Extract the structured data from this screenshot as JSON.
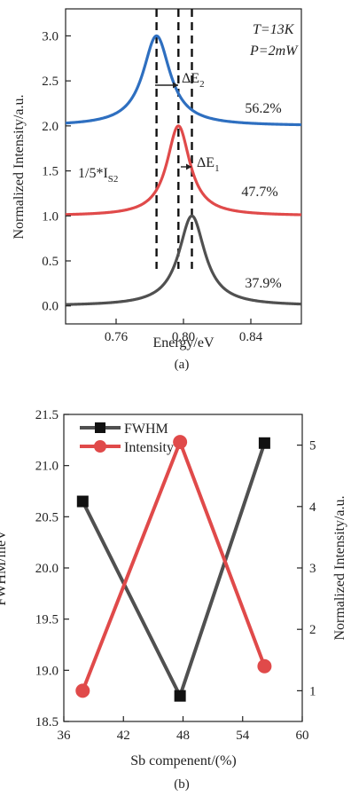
{
  "figure_a": {
    "caption": "(a)",
    "conditions": {
      "temperature": "T=13K",
      "power": "P=2mW"
    },
    "annotations": {
      "scale_note": "1/5*I",
      "scale_note_sub": "S2",
      "delta2": "ΔE",
      "delta2_sub": "2",
      "delta1": "ΔE",
      "delta1_sub": "1"
    }
  },
  "figure_b": {
    "caption": "(b)"
  },
  "chart_data": [
    {
      "type": "line",
      "xlabel": "Energy/eV",
      "ylabel": "Normalized Intensity/a.u.",
      "xlim": [
        0.73,
        0.87
      ],
      "ylim": [
        -0.2,
        3.3
      ],
      "xticks": [
        "0.76",
        "0.80",
        "0.84"
      ],
      "yticks": [
        "0.0",
        "0.5",
        "1.0",
        "1.5",
        "2.0",
        "2.5",
        "3.0"
      ],
      "series": [
        {
          "name": "37.9%",
          "color": "#505050",
          "baseline": 0.0,
          "peak_x": 0.805,
          "peak_height": 1.0,
          "fwhm": 0.0188
        },
        {
          "name": "47.7%",
          "color": "#e04a4a",
          "baseline": 1.0,
          "peak_x": 0.797,
          "peak_height": 1.0,
          "fwhm": 0.0166
        },
        {
          "name": "56.2%",
          "color": "#2e6fc0",
          "baseline": 2.0,
          "peak_x": 0.784,
          "peak_height": 1.0,
          "fwhm": 0.0195
        }
      ],
      "reference_lines_x": [
        0.784,
        0.797,
        0.805
      ]
    },
    {
      "type": "line",
      "xlabel": "Sb compenent/(%)",
      "ylabel": "FWHM/meV",
      "y2label": "Normalized Intensity/a.u.",
      "xlim": [
        36,
        60
      ],
      "ylim": [
        18.5,
        21.5
      ],
      "y2lim": [
        0.5,
        5.5
      ],
      "xticks": [
        "36",
        "42",
        "48",
        "54",
        "60"
      ],
      "yticks": [
        "18.5",
        "19.0",
        "19.5",
        "20.0",
        "20.5",
        "21.0",
        "21.5"
      ],
      "y2ticks": [
        "1",
        "2",
        "3",
        "4",
        "5"
      ],
      "legend_position": "top-left",
      "series": [
        {
          "name": "FWHM",
          "axis": "left",
          "color": "#505050",
          "marker": "square",
          "x": [
            37.9,
            47.7,
            56.2
          ],
          "y": [
            20.65,
            18.75,
            21.22
          ]
        },
        {
          "name": "Intensity",
          "axis": "right",
          "color": "#e04a4a",
          "marker": "circle",
          "x": [
            37.9,
            47.7,
            56.2
          ],
          "y": [
            1.0,
            5.05,
            1.4
          ]
        }
      ]
    }
  ]
}
